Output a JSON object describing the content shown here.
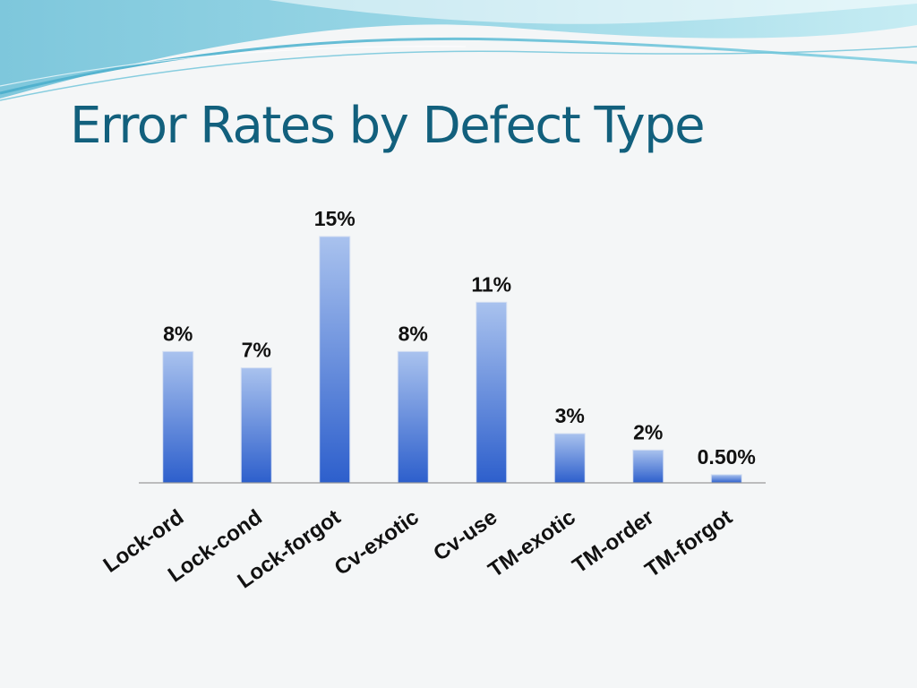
{
  "slide": {
    "title": "Error Rates by Defect Type",
    "colors": {
      "title": "#12607d",
      "bar_top": "#a9c2ee",
      "bar_bottom": "#2d5fcc",
      "background": "#f4f6f7"
    }
  },
  "chart_data": {
    "type": "bar",
    "title": "",
    "xlabel": "",
    "ylabel": "",
    "categories": [
      "Lock-ord",
      "Lock-cond",
      "Lock-forgot",
      "Cv-exotic",
      "Cv-use",
      "TM-exotic",
      "TM-order",
      "TM-forgot"
    ],
    "values": [
      8,
      7,
      15,
      8,
      11,
      3,
      2,
      0.5
    ],
    "value_labels": [
      "8%",
      "7%",
      "15%",
      "8%",
      "11%",
      "3%",
      "2%",
      "0.50%"
    ],
    "unit": "%",
    "ylim": [
      0,
      15
    ],
    "grid": false,
    "legend": "none",
    "gradient_bars": true
  }
}
